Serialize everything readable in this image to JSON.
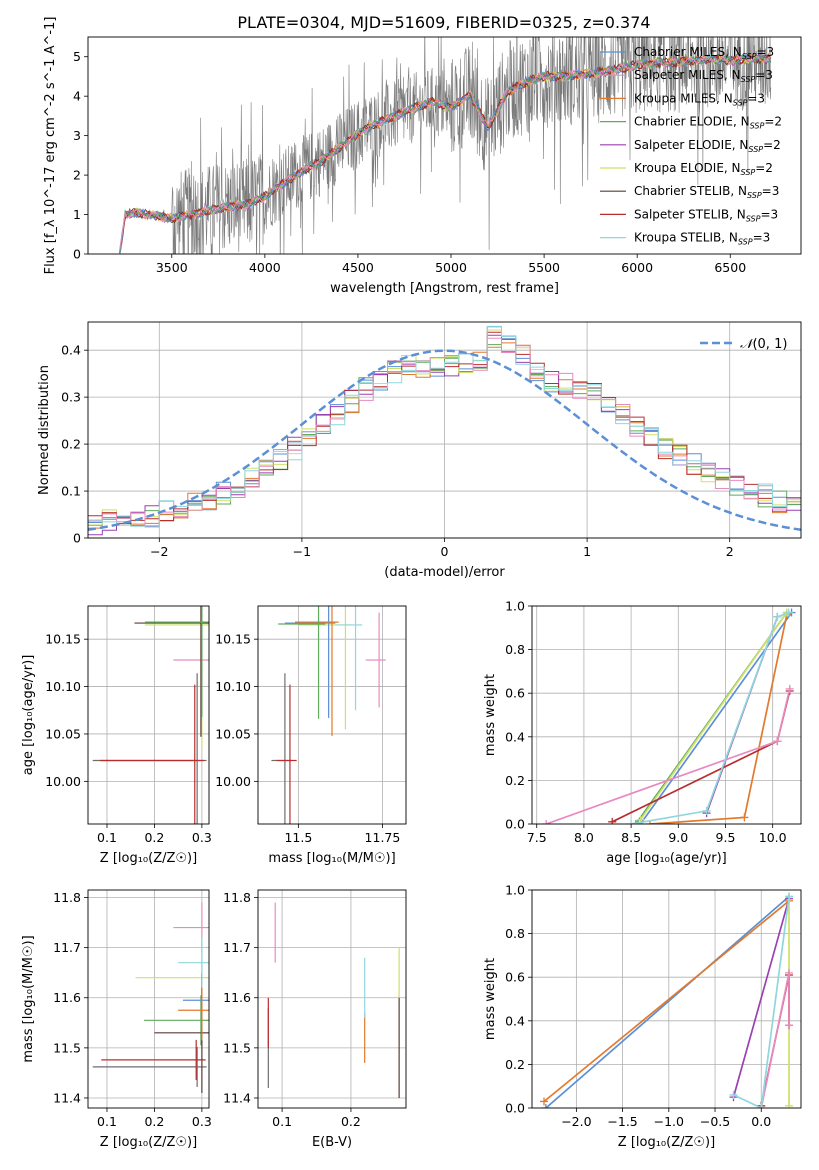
{
  "figure_title": "PLATE=0304, MJD=51609, FIBERID=0325, z=0.374",
  "colors": [
    "#5b8fd6",
    "#e2792b",
    "#5faa5b",
    "#9b3fb3",
    "#cfe06a",
    "#5a3d33",
    "#b82e2e",
    "#e88ac0",
    "#8fd6dd",
    "#6e6e6e"
  ],
  "chart_data": [
    {
      "id": "spectrum",
      "type": "line",
      "xlabel": "wavelength [Angstrom, rest frame]",
      "ylabel": "Flux [f_λ 10^-17 erg cm^-2 s^-1 A^-1]",
      "xlim": [
        3050,
        6880
      ],
      "ylim": [
        0,
        5.5
      ],
      "xticks": [
        3500,
        4000,
        4500,
        5000,
        5500,
        6000,
        6500
      ],
      "yticks": [
        0,
        1,
        2,
        3,
        4,
        5
      ],
      "grid": false,
      "legend_position": "upper-right",
      "legend": [
        "Chabrier MILES, N_SSP=3",
        "Salpeter MILES, N_SSP=3",
        "Kroupa MILES, N_SSP=3",
        "Chabrier ELODIE, N_SSP=2",
        "Salpeter ELODIE, N_SSP=2",
        "Kroupa ELODIE, N_SSP=2",
        "Chabrier STELIB, N_SSP=3",
        "Salpeter STELIB, N_SSP=3",
        "Kroupa STELIB, N_SSP=3"
      ],
      "model_continuum": {
        "x": [
          3220,
          3250,
          3300,
          3400,
          3500,
          3600,
          3700,
          3800,
          3900,
          4000,
          4100,
          4200,
          4300,
          4400,
          4500,
          4600,
          4700,
          4800,
          4900,
          5000,
          5100,
          5200,
          5300,
          5400,
          5500,
          5600,
          5700,
          5800,
          5900,
          6000,
          6100,
          6200,
          6300,
          6400,
          6500,
          6600,
          6720
        ],
        "y": [
          0.0,
          1.0,
          1.05,
          0.98,
          0.9,
          1.0,
          1.1,
          1.2,
          1.25,
          1.45,
          1.8,
          2.1,
          2.35,
          2.7,
          3.05,
          3.3,
          3.5,
          3.7,
          3.85,
          3.7,
          4.05,
          3.2,
          4.1,
          4.35,
          4.5,
          4.5,
          4.55,
          4.6,
          4.7,
          4.8,
          4.85,
          4.85,
          4.9,
          4.95,
          4.9,
          4.95,
          4.95
        ]
      }
    },
    {
      "id": "residuals",
      "type": "line",
      "xlabel": "(data-model)/error",
      "ylabel": "Normed distribution",
      "xlim": [
        -2.5,
        2.5
      ],
      "ylim": [
        0,
        0.46
      ],
      "xticks": [
        -2,
        -1,
        0,
        1,
        2
      ],
      "yticks": [
        0.0,
        0.1,
        0.2,
        0.3,
        0.4
      ],
      "grid": true,
      "legend_position": "upper-right",
      "legend_label": "N(0,1)",
      "histogram_envelope": {
        "x": [
          -2.5,
          -2.0,
          -1.5,
          -1.0,
          -0.5,
          -0.25,
          0.0,
          0.25,
          0.35,
          0.5,
          0.75,
          1.0,
          1.5,
          2.0,
          2.5
        ],
        "y": [
          0.03,
          0.05,
          0.1,
          0.2,
          0.33,
          0.37,
          0.36,
          0.38,
          0.43,
          0.4,
          0.33,
          0.32,
          0.2,
          0.12,
          0.06
        ]
      }
    },
    {
      "id": "age_vs_z",
      "type": "scatter",
      "xlabel": "Z [log10(Z/Z☉)]",
      "ylabel": "age [log10(age/yr)]",
      "xlim": [
        0.06,
        0.315
      ],
      "ylim": [
        9.955,
        10.185
      ],
      "xticks": [
        0.1,
        0.2,
        0.3
      ],
      "yticks": [
        10.0,
        10.05,
        10.1,
        10.15
      ],
      "grid": true,
      "points": [
        {
          "x": 0.29,
          "y": 10.022,
          "xerr": 0.22,
          "yerr": 0.092,
          "series": 9
        },
        {
          "x": 0.285,
          "y": 10.022,
          "xerr": 0.2,
          "yerr": 0.08,
          "series": 6
        },
        {
          "x": 0.3,
          "y": 10.128,
          "xerr": 0.06,
          "yerr": 0.05,
          "series": 7
        },
        {
          "x": 0.3,
          "y": 10.165,
          "xerr": 0.12,
          "yerr": 0.13,
          "series": 4
        },
        {
          "x": 0.298,
          "y": 10.167,
          "xerr": 0.14,
          "yerr": 0.12,
          "series": 5
        },
        {
          "x": 0.3,
          "y": 10.168,
          "xerr": 0.12,
          "yerr": 0.1,
          "series": 2
        }
      ]
    },
    {
      "id": "age_vs_mass",
      "type": "scatter",
      "xlabel": "mass [log10(M/M☉)]",
      "ylabel": "",
      "xlim": [
        11.38,
        11.82
      ],
      "ylim": [
        9.955,
        10.185
      ],
      "xticks": [
        11.5,
        11.75
      ],
      "yticks": [
        10.0,
        10.05,
        10.1,
        10.15
      ],
      "grid": true,
      "points": [
        {
          "x": 11.46,
          "y": 10.022,
          "xerr": 0.04,
          "yerr": 0.092,
          "series": 9
        },
        {
          "x": 11.475,
          "y": 10.022,
          "xerr": 0.04,
          "yerr": 0.08,
          "series": 6
        },
        {
          "x": 11.74,
          "y": 10.128,
          "xerr": 0.04,
          "yerr": 0.05,
          "series": 7
        },
        {
          "x": 11.64,
          "y": 10.165,
          "xerr": 0.14,
          "yerr": 0.11,
          "series": 4
        },
        {
          "x": 11.59,
          "y": 10.167,
          "xerr": 0.13,
          "yerr": 0.1,
          "series": 0
        },
        {
          "x": 11.6,
          "y": 10.168,
          "xerr": 0.11,
          "yerr": 0.12,
          "series": 1
        },
        {
          "x": 11.67,
          "y": 10.165,
          "xerr": 0.06,
          "yerr": 0.09,
          "series": 8
        },
        {
          "x": 11.56,
          "y": 10.166,
          "xerr": 0.12,
          "yerr": 0.1,
          "series": 2
        }
      ]
    },
    {
      "id": "mass_weight_vs_age",
      "type": "line",
      "xlabel": "age [log10(age/yr)]",
      "ylabel": "mass weight",
      "xlim": [
        7.45,
        10.3
      ],
      "ylim": [
        0,
        1.0
      ],
      "xticks": [
        7.5,
        8.0,
        8.5,
        9.0,
        9.5,
        10.0
      ],
      "yticks": [
        0.0,
        0.2,
        0.4,
        0.6,
        0.8,
        1.0
      ],
      "grid": true,
      "series": [
        {
          "series": 0,
          "x": [
            8.6,
            10.2
          ],
          "y": [
            0.0,
            0.97
          ]
        },
        {
          "series": 1,
          "x": [
            8.7,
            9.7,
            10.15
          ],
          "y": [
            0.0,
            0.03,
            0.96
          ]
        },
        {
          "series": 2,
          "x": [
            8.55,
            10.15
          ],
          "y": [
            0.0,
            0.97
          ]
        },
        {
          "series": 3,
          "x": [
            9.3,
            10.05
          ],
          "y": [
            0.05,
            0.95
          ]
        },
        {
          "series": 4,
          "x": [
            8.6,
            10.15
          ],
          "y": [
            0.02,
            0.97
          ]
        },
        {
          "series": 6,
          "x": [
            8.3,
            10.05,
            10.18
          ],
          "y": [
            0.01,
            0.38,
            0.61
          ]
        },
        {
          "series": 7,
          "x": [
            7.6,
            10.05,
            10.18
          ],
          "y": [
            0.0,
            0.38,
            0.62
          ]
        },
        {
          "series": 8,
          "x": [
            8.5,
            9.3,
            10.05,
            10.17
          ],
          "y": [
            0.0,
            0.06,
            0.95,
            0.97
          ]
        }
      ]
    },
    {
      "id": "mass_vs_z",
      "type": "scatter",
      "xlabel": "Z [log10(Z/Z☉)]",
      "ylabel": "mass [log10(M/M☉)]",
      "xlim": [
        0.06,
        0.315
      ],
      "ylim": [
        11.38,
        11.815
      ],
      "xticks": [
        0.1,
        0.2,
        0.3
      ],
      "yticks": [
        11.4,
        11.5,
        11.6,
        11.7,
        11.8
      ],
      "grid": true,
      "points": [
        {
          "x": 0.29,
          "y": 11.462,
          "xerr": 0.22,
          "yerr": 0.04,
          "series": 9
        },
        {
          "x": 0.288,
          "y": 11.476,
          "xerr": 0.2,
          "yerr": 0.04,
          "series": 6
        },
        {
          "x": 0.3,
          "y": 11.74,
          "xerr": 0.06,
          "yerr": 0.05,
          "series": 7
        },
        {
          "x": 0.3,
          "y": 11.64,
          "xerr": 0.14,
          "yerr": 0.07,
          "series": 4
        },
        {
          "x": 0.298,
          "y": 11.555,
          "xerr": 0.12,
          "yerr": 0.05,
          "series": 2
        },
        {
          "x": 0.3,
          "y": 11.53,
          "xerr": 0.1,
          "yerr": 0.12,
          "series": 5
        },
        {
          "x": 0.3,
          "y": 11.595,
          "xerr": 0.04,
          "yerr": 0.05,
          "series": 0
        },
        {
          "x": 0.3,
          "y": 11.575,
          "xerr": 0.05,
          "yerr": 0.06,
          "series": 1
        },
        {
          "x": 0.3,
          "y": 11.67,
          "xerr": 0.05,
          "yerr": 0.05,
          "series": 8
        }
      ]
    },
    {
      "id": "mass_vs_ebv",
      "type": "scatter",
      "xlabel": "E(B-V)",
      "ylabel": "",
      "xlim": [
        0.065,
        0.28
      ],
      "ylim": [
        11.38,
        11.815
      ],
      "xticks": [
        0.1,
        0.2
      ],
      "yticks": [
        11.4,
        11.5,
        11.6,
        11.7,
        11.8
      ],
      "grid": true,
      "points": [
        {
          "x": 0.09,
          "y": 11.73,
          "yerr": 0.06,
          "series": 7
        },
        {
          "x": 0.08,
          "y": 11.5,
          "yerr": 0.08,
          "series": 9
        },
        {
          "x": 0.08,
          "y": 11.55,
          "yerr": 0.05,
          "series": 6
        },
        {
          "x": 0.22,
          "y": 11.52,
          "yerr": 0.05,
          "series": 1
        },
        {
          "x": 0.22,
          "y": 11.62,
          "yerr": 0.06,
          "series": 8
        },
        {
          "x": 0.27,
          "y": 11.65,
          "yerr": 0.05,
          "series": 4
        },
        {
          "x": 0.27,
          "y": 11.5,
          "yerr": 0.1,
          "series": 5
        }
      ]
    },
    {
      "id": "mass_weight_vs_z",
      "type": "line",
      "xlabel": "Z [log10(Z/Z☉)]",
      "ylabel": "mass weight",
      "xlim": [
        -2.48,
        0.43
      ],
      "ylim": [
        0,
        1.0
      ],
      "xticks": [
        -2.0,
        -1.5,
        -1.0,
        -0.5,
        0.0
      ],
      "yticks": [
        0.0,
        0.2,
        0.4,
        0.6,
        0.8,
        1.0
      ],
      "grid": true,
      "series": [
        {
          "series": 0,
          "x": [
            -2.33,
            0.3
          ],
          "y": [
            0.0,
            0.97
          ]
        },
        {
          "series": 1,
          "x": [
            -2.35,
            0.3
          ],
          "y": [
            0.03,
            0.95
          ]
        },
        {
          "series": 3,
          "x": [
            -0.3,
            0.3
          ],
          "y": [
            0.05,
            0.96
          ]
        },
        {
          "series": 4,
          "x": [
            0.3,
            0.3
          ],
          "y": [
            0.01,
            0.97
          ]
        },
        {
          "series": 6,
          "x": [
            0.0,
            0.3,
            0.3
          ],
          "y": [
            0.01,
            0.61,
            0.38
          ]
        },
        {
          "series": 7,
          "x": [
            0.0,
            0.3,
            0.3
          ],
          "y": [
            0.0,
            0.62,
            0.38
          ]
        },
        {
          "series": 8,
          "x": [
            -0.3,
            0.0,
            0.3
          ],
          "y": [
            0.06,
            0.0,
            0.97
          ]
        }
      ]
    }
  ]
}
